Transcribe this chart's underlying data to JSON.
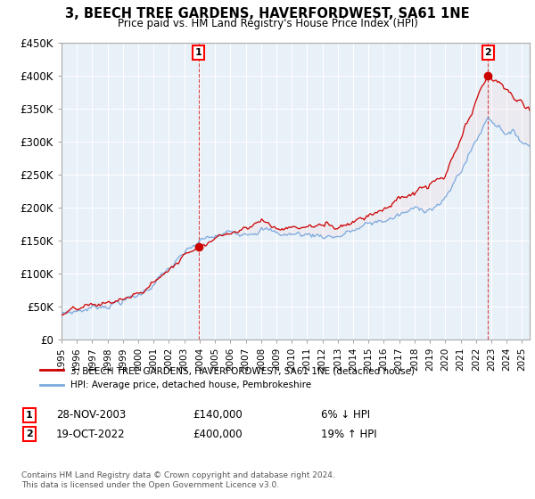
{
  "title": "3, BEECH TREE GARDENS, HAVERFORDWEST, SA61 1NE",
  "subtitle": "Price paid vs. HM Land Registry's House Price Index (HPI)",
  "ylabel_ticks": [
    "£0",
    "£50K",
    "£100K",
    "£150K",
    "£200K",
    "£250K",
    "£300K",
    "£350K",
    "£400K",
    "£450K"
  ],
  "ylim": [
    0,
    450000
  ],
  "xlim_start": 1995.0,
  "xlim_end": 2025.5,
  "sale1_year": 2003.92,
  "sale1_price": 140000,
  "sale1_label": "1",
  "sale1_date": "28-NOV-2003",
  "sale1_amount": "£140,000",
  "sale1_hpi": "6% ↓ HPI",
  "sale2_year": 2022.79,
  "sale2_price": 400000,
  "sale2_label": "2",
  "sale2_date": "19-OCT-2022",
  "sale2_amount": "£400,000",
  "sale2_hpi": "19% ↑ HPI",
  "line_color_red": "#cc0000",
  "line_color_blue": "#7aabde",
  "fill_color_blue": "#ddeeff",
  "legend1": "3, BEECH TREE GARDENS, HAVERFORDWEST, SA61 1NE (detached house)",
  "legend2": "HPI: Average price, detached house, Pembrokeshire",
  "footnote": "Contains HM Land Registry data © Crown copyright and database right 2024.\nThis data is licensed under the Open Government Licence v3.0.",
  "background_color": "#ffffff",
  "grid_color": "#cccccc"
}
